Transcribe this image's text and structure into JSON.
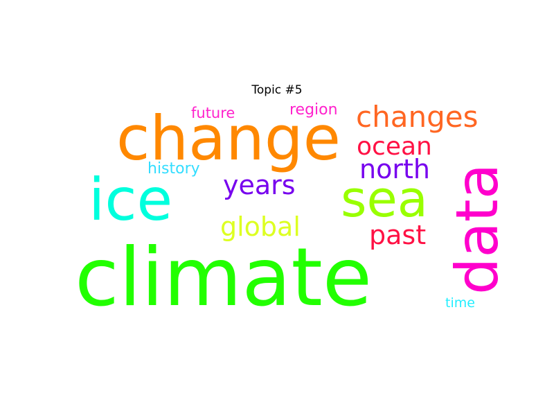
{
  "title": "Topic #5",
  "words": [
    {
      "text": "climate",
      "color": "#22ff00",
      "weight": 1.0
    },
    {
      "text": "change",
      "color": "#ff8800",
      "weight": 0.78
    },
    {
      "text": "ice",
      "color": "#00ffdd",
      "weight": 0.72
    },
    {
      "text": "data",
      "color": "#ff00cc",
      "weight": 0.66
    },
    {
      "text": "sea",
      "color": "#99ff00",
      "weight": 0.62
    },
    {
      "text": "changes",
      "color": "#ff6622",
      "weight": 0.38
    },
    {
      "text": "years",
      "color": "#7700ee",
      "weight": 0.34
    },
    {
      "text": "north",
      "color": "#7700ee",
      "weight": 0.34
    },
    {
      "text": "global",
      "color": "#ddff22",
      "weight": 0.33
    },
    {
      "text": "past",
      "color": "#ff1144",
      "weight": 0.33
    },
    {
      "text": "ocean",
      "color": "#ff1144",
      "weight": 0.31
    },
    {
      "text": "history",
      "color": "#33ddff",
      "weight": 0.2
    },
    {
      "text": "region",
      "color": "#ff22cc",
      "weight": 0.19
    },
    {
      "text": "future",
      "color": "#ff22cc",
      "weight": 0.18
    },
    {
      "text": "time",
      "color": "#22eeff",
      "weight": 0.16
    }
  ]
}
